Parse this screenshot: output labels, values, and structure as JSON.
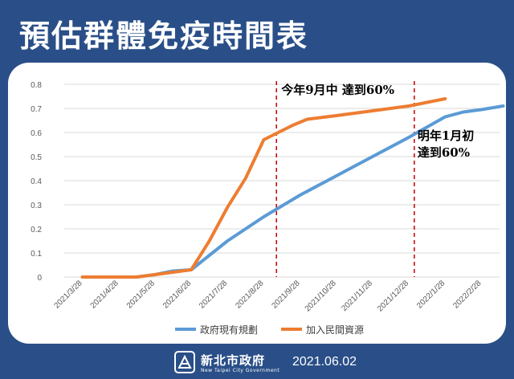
{
  "title": "預估群體免疫時間表",
  "footer": {
    "gov_name": "新北市政府",
    "gov_sub": "New Taipei City Government",
    "date": "2021.06.02"
  },
  "chart_data": {
    "type": "line",
    "x": [
      "2021/3/28",
      "2021/4/28",
      "2021/5/28",
      "2021/6/28",
      "2021/7/28",
      "2021/8/28",
      "2021/9/28",
      "2021/10/28",
      "2021/11/28",
      "2021/12/28",
      "2022/1/28",
      "2022/2/28"
    ],
    "ylim": [
      0,
      0.8
    ],
    "yticks": [
      "0",
      "0.1",
      "0.2",
      "0.3",
      "0.4",
      "0.5",
      "0.6",
      "0.7",
      "0.8"
    ],
    "grid": "horizontal",
    "legend_position": "bottom",
    "series": [
      {
        "name": "政府現有規劃",
        "color": "#5b9bd5",
        "points": [
          [
            0,
            0
          ],
          [
            0.5,
            0
          ],
          [
            1,
            0
          ],
          [
            1.5,
            0
          ],
          [
            2,
            0.01
          ],
          [
            2.5,
            0.025
          ],
          [
            3,
            0.03
          ],
          [
            4,
            0.15
          ],
          [
            5,
            0.25
          ],
          [
            6,
            0.34
          ],
          [
            7,
            0.42
          ],
          [
            8,
            0.5
          ],
          [
            9,
            0.58
          ],
          [
            10,
            0.665
          ],
          [
            10.5,
            0.685
          ],
          [
            11,
            0.695
          ],
          [
            11.6,
            0.71
          ]
        ]
      },
      {
        "name": "加入民間資源",
        "color": "#ed7d31",
        "points": [
          [
            0,
            0
          ],
          [
            0.5,
            0
          ],
          [
            1,
            0
          ],
          [
            1.5,
            0
          ],
          [
            2,
            0.01
          ],
          [
            2.5,
            0.02
          ],
          [
            3,
            0.03
          ],
          [
            3.5,
            0.15
          ],
          [
            4,
            0.29
          ],
          [
            4.5,
            0.41
          ],
          [
            5,
            0.57
          ],
          [
            5.4,
            0.6
          ],
          [
            5.8,
            0.63
          ],
          [
            6.2,
            0.655
          ],
          [
            7,
            0.67
          ],
          [
            8,
            0.69
          ],
          [
            9,
            0.71
          ],
          [
            10,
            0.74
          ]
        ]
      }
    ],
    "markers": [
      {
        "x": 5.35,
        "label": "今年9月中  達到60%"
      },
      {
        "x": 9.15,
        "label": "明年1月初 達到60%"
      }
    ]
  }
}
